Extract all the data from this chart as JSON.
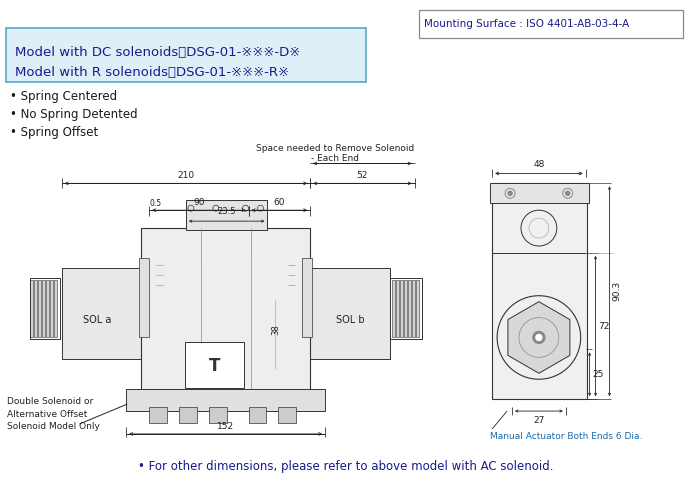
{
  "bg_color": "#ffffff",
  "title_box_text1": "Model with DC solenoids：DSG-01-※※※-D※",
  "title_box_text2": "Model with R solenoids：DSG-01-※※※-R※",
  "title_box_color": "#ddf0f8",
  "title_box_border": "#55aacc",
  "mounting_text": "Mounting Surface : ISO 4401-AB-03-4-A",
  "mounting_border": "#888888",
  "bullet_items": [
    "Spring Centered",
    "No Spring Detented",
    "Spring Offset"
  ],
  "space_text1": "Space needed to Remove Solenoid",
  "space_text2": "- Each End",
  "dim_color": "#222222",
  "drawing_color": "#333333",
  "footer_text": "• For other dimensions, please refer to above model with AC solenoid.",
  "footnote_left": "Double Solenoid or\nAlternative Offset\nSolenoid Model Only",
  "manual_act_text": "Manual Actuator Both Ends 6 Dia."
}
